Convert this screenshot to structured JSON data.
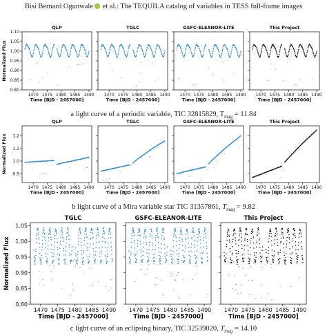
{
  "header": {
    "author": "Bisi Bernard Ogunwale",
    "text": "et al.: The TEQUILA catalog of variables in TESS full-frame images"
  },
  "captions": {
    "a_main": "a light curve of a periodic variable, TIC 32815829, T",
    "a_sub": "mag",
    "a_val": " = 11.84",
    "b_main": "b light curve of a Mira variable star TIC 31357861, ",
    "b_T": "T",
    "b_sub": "mag",
    "b_val": " = 9.82",
    "c_main": "c light curve of an eclipsing binary, TIC 32539020, ",
    "c_T": "T",
    "c_sub": "mag",
    "c_val": " = 14.10"
  },
  "colors": {
    "pipeline": "#3b8fd0",
    "this_project": "#222222",
    "axis": "#222222"
  },
  "chart_data": [
    {
      "type": "scatter",
      "panels": [
        "QLP",
        "TGLC",
        "GSFC-ELEANOR-LITE",
        "This Project"
      ],
      "xlabel": "Time [BJD - 2457000]",
      "ylabel": "Normalized Flux",
      "xlim": [
        1466,
        1491
      ],
      "ylim": [
        0.8,
        1.1
      ],
      "xticks": [
        1470,
        1475,
        1480,
        1485,
        1490
      ],
      "yticks": [
        0.8,
        0.85,
        0.9,
        0.95,
        1.0,
        1.05,
        1.1
      ],
      "ytick_labels": [
        "0.80",
        "0.85",
        "0.90",
        "0.95",
        "1.00",
        "1.05",
        "1.10"
      ],
      "signal": {
        "kind": "periodic",
        "mean": 1.005,
        "amplitude": 0.03,
        "period_days": 3.3,
        "gap": [
          1477.5,
          1478.5
        ]
      }
    },
    {
      "type": "scatter",
      "panels": [
        "QLP",
        "TGLC",
        "GSFC-ELEANOR-LITE",
        "This Project"
      ],
      "xlabel": "Time [BJD - 2457000]",
      "ylabel": "Normalized Flux",
      "xlim": [
        1466,
        1491
      ],
      "ylim": [
        0.83,
        1.28
      ],
      "xticks": [
        1470,
        1475,
        1480,
        1485,
        1490
      ],
      "yticks": [
        0.9,
        1.0,
        1.1,
        1.2
      ],
      "ytick_labels": [
        "0.9",
        "1.0",
        "1.1",
        "1.2"
      ],
      "signal": {
        "kind": "trend",
        "gap": [
          1477.5,
          1478.5
        ],
        "curves": {
          "QLP": [
            [
              1467,
              0.99
            ],
            [
              1477.5,
              1.005
            ],
            [
              1478.5,
              0.975
            ],
            [
              1490,
              1.03
            ]
          ],
          "TGLC": [
            [
              1467,
              0.92
            ],
            [
              1477.5,
              0.97
            ],
            [
              1478.5,
              0.985
            ],
            [
              1490,
              1.16
            ]
          ],
          "GSFC-ELEANOR-LITE": [
            [
              1467,
              0.9
            ],
            [
              1477.5,
              0.955
            ],
            [
              1478.5,
              0.98
            ],
            [
              1490,
              1.2
            ]
          ],
          "This Project": [
            [
              1467,
              0.87
            ],
            [
              1477.5,
              0.96
            ],
            [
              1478.5,
              0.99
            ],
            [
              1490,
              1.245
            ]
          ]
        }
      }
    },
    {
      "type": "scatter",
      "panels": [
        "TGLC",
        "GSFC-ELEANOR-LITE",
        "This Project"
      ],
      "xlabel": "Time [BJD - 2457000]",
      "ylabel": "Normalized Flux",
      "xlim": [
        1467,
        1492
      ],
      "ylim": [
        0.8,
        1.06
      ],
      "xticks": [
        1470,
        1475,
        1480,
        1485,
        1490
      ],
      "yticks": [
        0.8,
        0.85,
        0.9,
        0.95,
        1.0,
        1.05
      ],
      "ytick_labels": [
        "0.80",
        "0.85",
        "0.90",
        "0.95",
        "1.00",
        "1.05"
      ],
      "signal": {
        "kind": "eclipsing",
        "mean": 0.995,
        "amplitude": 0.045,
        "period_days": 1.75,
        "gap": [
          1479.2,
          1480.2
        ]
      }
    }
  ]
}
